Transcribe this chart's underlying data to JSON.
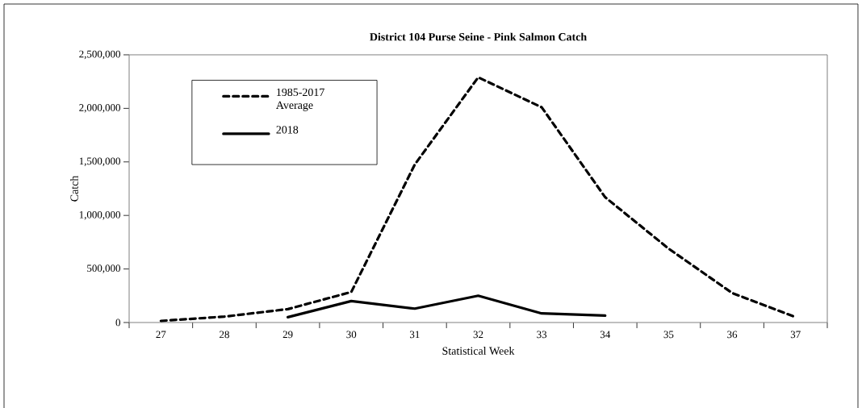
{
  "chart_data": {
    "type": "line",
    "title": "District 104 Purse Seine - Pink Salmon Catch",
    "xlabel": "Statistical Week",
    "ylabel": "Catch",
    "categories": [
      "27",
      "28",
      "29",
      "30",
      "31",
      "32",
      "33",
      "34",
      "35",
      "36",
      "37"
    ],
    "series": [
      {
        "name": "1985-2017 Average",
        "color": "#000000",
        "line_style": "dashed",
        "values": [
          15000,
          55000,
          125000,
          285000,
          1475000,
          2290000,
          2010000,
          1170000,
          690000,
          276000,
          50000
        ]
      },
      {
        "name": "2018",
        "color": "#000000",
        "line_style": "solid",
        "values": [
          null,
          null,
          50000,
          200000,
          130000,
          250000,
          85000,
          65000,
          null,
          null,
          null
        ]
      }
    ],
    "ylim": [
      0,
      2500000
    ],
    "yticks": [
      0,
      {
        "value": 500000,
        "label": "500,000"
      },
      {
        "value": 1000000,
        "label": "1,000,000"
      },
      {
        "value": 1500000,
        "label": "1,500,000"
      },
      {
        "value": 2000000,
        "label": "2,000,000"
      },
      {
        "value": 2500000,
        "label": "2,500,000"
      }
    ],
    "grid": false,
    "legend": "top left",
    "marker": "none"
  }
}
